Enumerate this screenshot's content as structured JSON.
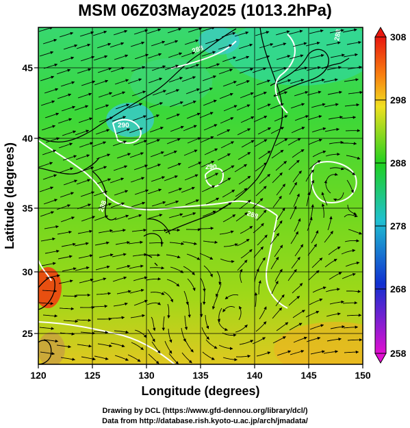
{
  "title": "MSM 06Z03May2025 (1013.2hPa)",
  "x_axis": {
    "label": "Longitude (degrees)",
    "ticks": [
      "120",
      "125",
      "130",
      "135",
      "140",
      "145",
      "150"
    ]
  },
  "y_axis": {
    "label": "Latitude  (degrees)",
    "ticks": [
      "45",
      "40",
      "35",
      "30",
      "25"
    ]
  },
  "colorbar": {
    "ticks": [
      "308",
      "298",
      "288",
      "278",
      "268",
      "258"
    ]
  },
  "contour_labels": [
    "290",
    "290",
    "288",
    "288",
    "288",
    "288"
  ],
  "credits": {
    "line1": "Drawing by DCL (https://www.gfd-dennou.org/library/dcl/)",
    "line2": "Data from http://database.rish.kyoto-u.ac.jp/arch/jmadata/"
  }
}
